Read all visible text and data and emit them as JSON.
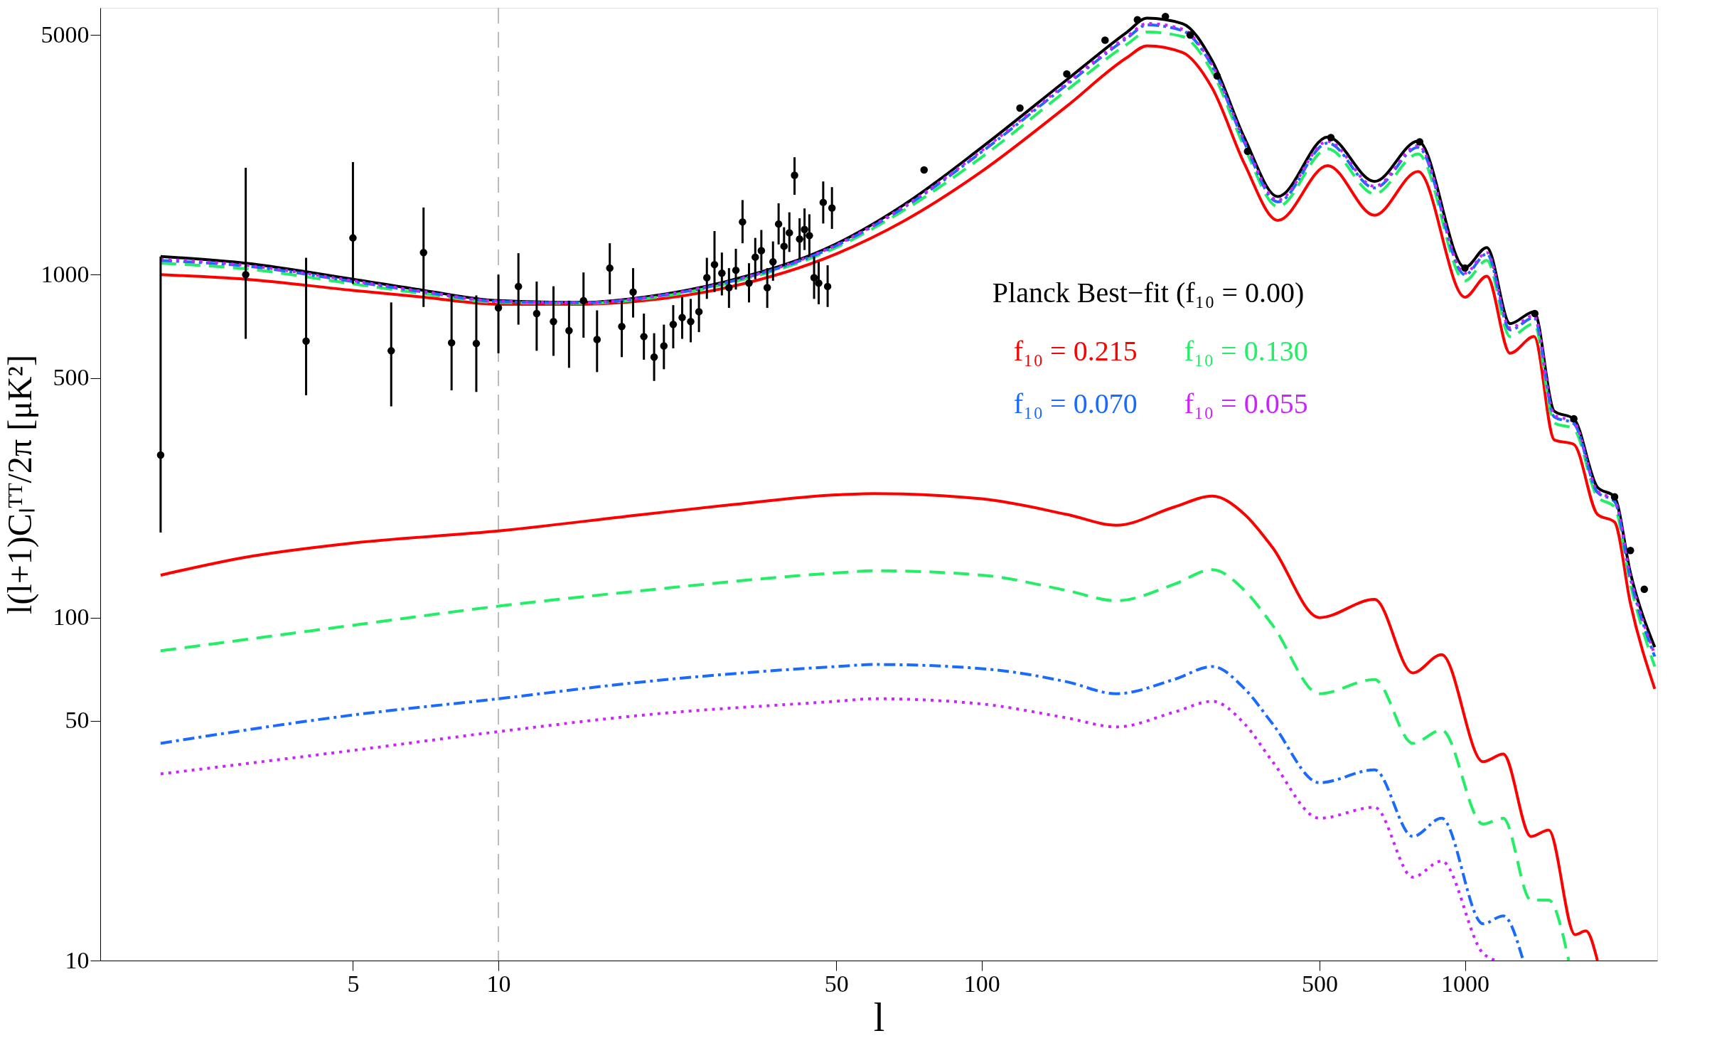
{
  "chart_data": {
    "type": "line",
    "xlabel": "l",
    "ylabel": "l(l+1)Cₗᵀᵀ/2π  [μK²]",
    "log": "xy",
    "grid": false,
    "legend": "right",
    "xlim": [
      1.5,
      2500
    ],
    "ylim": [
      10,
      6000
    ],
    "xticks": [
      5,
      10,
      50,
      100,
      500,
      1000
    ],
    "yticks": [
      10,
      50,
      100,
      500,
      1000,
      5000
    ],
    "ref_lines": [
      {
        "axis": "x",
        "value": 10,
        "color": "#bbbbbb",
        "line_style": "dashed"
      }
    ],
    "series": [
      {
        "name": "Planck Best−fit (f₁₀ = 0.00)",
        "color": "#000000",
        "line_style": "solid",
        "x": [
          2,
          3,
          5,
          7,
          10,
          15,
          20,
          30,
          50,
          70,
          100,
          150,
          200,
          220,
          260,
          300,
          350,
          410,
          520,
          650,
          800,
          1000,
          1110,
          1240,
          1390,
          1530,
          1680,
          1880,
          2040,
          2200,
          2470
        ],
        "values": [
          1130,
          1080,
          970,
          900,
          840,
          830,
          860,
          960,
          1230,
          1620,
          2350,
          3700,
          5100,
          5600,
          5400,
          4200,
          2500,
          1690,
          2520,
          1870,
          2450,
          1050,
          1200,
          720,
          780,
          400,
          380,
          240,
          225,
          135,
          82
        ]
      },
      {
        "name": "f₁₀ = 0.215",
        "color": "#ff0000",
        "line_style": "solid",
        "x": [
          2,
          3,
          5,
          7,
          10,
          15,
          20,
          30,
          50,
          70,
          100,
          150,
          200,
          220,
          260,
          300,
          350,
          410,
          520,
          650,
          800,
          1000,
          1110,
          1240,
          1390,
          1530,
          1680,
          1880,
          2040,
          2200,
          2470
        ],
        "values": [
          1000,
          970,
          900,
          860,
          820,
          820,
          840,
          920,
          1150,
          1450,
          2000,
          3100,
          4300,
          4650,
          4450,
          3500,
          2100,
          1440,
          2080,
          1490,
          2000,
          860,
          990,
          590,
          660,
          330,
          320,
          200,
          190,
          110,
          62
        ]
      },
      {
        "name": "f₁₀ = 0.130",
        "color": "#22ee66",
        "line_style": "dashed",
        "x": [
          2,
          3,
          5,
          7,
          10,
          15,
          20,
          30,
          50,
          70,
          100,
          150,
          200,
          220,
          260,
          300,
          350,
          410,
          520,
          650,
          800,
          1000,
          1110,
          1240,
          1390,
          1530,
          1680,
          1880,
          2040,
          2200,
          2470
        ],
        "values": [
          1080,
          1040,
          940,
          880,
          830,
          825,
          850,
          945,
          1200,
          1560,
          2200,
          3450,
          4700,
          5100,
          4950,
          3900,
          2350,
          1580,
          2330,
          1720,
          2250,
          960,
          1100,
          660,
          720,
          370,
          355,
          225,
          210,
          125,
          72
        ]
      },
      {
        "name": "f₁₀ = 0.070",
        "color": "#1a6aff",
        "line_style": "dashdot",
        "x": [
          2,
          3,
          5,
          7,
          10,
          15,
          20,
          30,
          50,
          70,
          100,
          150,
          200,
          220,
          260,
          300,
          350,
          410,
          520,
          650,
          800,
          1000,
          1110,
          1240,
          1390,
          1530,
          1680,
          1880,
          2040,
          2200,
          2470
        ],
        "values": [
          1100,
          1060,
          955,
          890,
          835,
          828,
          855,
          952,
          1215,
          1590,
          2280,
          3580,
          4900,
          5350,
          5150,
          4050,
          2420,
          1630,
          2420,
          1790,
          2350,
          1000,
          1150,
          690,
          750,
          385,
          368,
          232,
          218,
          130,
          77
        ]
      },
      {
        "name": "f₁₀ = 0.055",
        "color": "#cc22ff",
        "line_style": "dotted",
        "x": [
          2,
          3,
          5,
          7,
          10,
          15,
          20,
          30,
          50,
          70,
          100,
          150,
          200,
          220,
          260,
          300,
          350,
          410,
          520,
          650,
          800,
          1000,
          1110,
          1240,
          1390,
          1530,
          1680,
          1880,
          2040,
          2200,
          2470
        ],
        "values": [
          1110,
          1065,
          960,
          893,
          837,
          829,
          857,
          955,
          1220,
          1600,
          2300,
          3620,
          4950,
          5400,
          5200,
          4080,
          2450,
          1650,
          2450,
          1810,
          2380,
          1010,
          1160,
          700,
          760,
          390,
          372,
          234,
          220,
          132,
          78
        ]
      },
      {
        "color": "#ff0000",
        "line_style": "solid",
        "x": [
          2,
          3,
          5,
          10,
          20,
          30,
          50,
          60,
          100,
          150,
          190,
          250,
          300,
          350,
          400,
          500,
          650,
          780,
          895,
          1090,
          1200,
          1370,
          1490,
          1690,
          1780,
          1880
        ],
        "values": [
          133,
          150,
          165,
          179,
          200,
          213,
          228,
          230,
          222,
          200,
          186,
          210,
          226,
          200,
          160,
          100,
          113,
          69,
          78,
          38,
          40,
          23,
          24,
          11.9,
          12.2,
          10
        ]
      },
      {
        "color": "#22ee66",
        "line_style": "dashed",
        "x": [
          2,
          5,
          10,
          20,
          50,
          60,
          100,
          150,
          190,
          250,
          300,
          350,
          400,
          500,
          650,
          780,
          895,
          1090,
          1200,
          1370,
          1490,
          1640
        ],
        "values": [
          80,
          95,
          108,
          120,
          135,
          137,
          133,
          120,
          112,
          125,
          138,
          120,
          95,
          60,
          66,
          43,
          47,
          25,
          26,
          15,
          15,
          10
        ]
      },
      {
        "color": "#1a6aff",
        "line_style": "dashdot",
        "x": [
          2,
          5,
          10,
          20,
          50,
          60,
          100,
          150,
          190,
          250,
          300,
          350,
          400,
          500,
          650,
          780,
          895,
          1090,
          1200,
          1320
        ],
        "values": [
          43,
          52,
          58,
          65,
          72,
          73,
          71,
          65,
          60,
          66,
          72,
          62,
          49,
          33,
          36,
          23,
          26,
          12.8,
          13.5,
          10
        ]
      },
      {
        "color": "#cc22ff",
        "line_style": "dotted",
        "x": [
          2,
          5,
          10,
          20,
          50,
          60,
          100,
          150,
          190,
          250,
          300,
          350,
          400,
          500,
          650,
          780,
          895,
          1090,
          1160
        ],
        "values": [
          35,
          41,
          46.5,
          52,
          57,
          58,
          56,
          51,
          48,
          53,
          57,
          49,
          38,
          26,
          28,
          17.5,
          19.5,
          10.5,
          10
        ]
      },
      {
        "type": "scatter",
        "color": "#000000",
        "marker": "circle",
        "x": [
          2,
          3,
          4,
          5,
          6,
          7,
          8,
          9,
          10,
          11,
          12,
          13,
          14,
          15,
          16,
          17,
          18,
          19,
          20,
          21,
          22,
          23,
          24,
          25,
          26,
          27,
          28,
          29,
          30,
          31,
          32,
          33,
          34,
          35,
          36,
          37,
          38,
          39,
          40,
          41,
          42,
          43,
          44,
          45,
          46,
          47,
          48,
          49,
          76,
          120,
          150,
          180,
          210,
          240,
          270,
          307,
          355,
          528,
          806,
          1000,
          1395,
          1680,
          2040,
          2200,
          2350
        ],
        "values": [
          298,
          1000,
          640,
          1280,
          600,
          1160,
          633,
          630,
          800,
          924,
          770,
          730,
          687,
          840,
          647,
          1045,
          706,
          890,
          660,
          575,
          620,
          716,
          750,
          730,
          780,
          980,
          1070,
          1010,
          917,
          1030,
          1425,
          945,
          1125,
          1175,
          917,
          1090,
          1405,
          1210,
          1325,
          1950,
          1270,
          1355,
          1300,
          980,
          945,
          1625,
          924,
          1565,
          2020,
          3060,
          3850,
          4830,
          5540,
          5660,
          5000,
          3800,
          2290,
          2510,
          2440,
          1045,
          770,
          380,
          225,
          157,
          121
        ],
        "errors": [
          [
            177,
            1130
          ],
          [
            650,
            2050
          ],
          [
            445,
            1120
          ],
          [
            940,
            2130
          ],
          [
            413,
            830
          ],
          [
            805,
            1570
          ],
          [
            460,
            875
          ],
          [
            455,
            870
          ],
          [
            590,
            1000
          ],
          [
            715,
            1155
          ],
          [
            600,
            955
          ],
          [
            580,
            925
          ],
          [
            535,
            840
          ],
          [
            655,
            1015
          ],
          [
            520,
            787
          ],
          [
            877,
            1235
          ],
          [
            575,
            840
          ],
          [
            750,
            1045
          ],
          [
            565,
            770
          ],
          [
            490,
            675
          ],
          [
            530,
            715
          ],
          [
            610,
            815
          ],
          [
            650,
            860
          ],
          [
            635,
            850
          ],
          [
            680,
            905
          ],
          [
            850,
            1120
          ],
          [
            890,
            1340
          ],
          [
            870,
            1160
          ],
          [
            800,
            1045
          ],
          [
            905,
            1190
          ],
          [
            1235,
            1650
          ],
          [
            830,
            1080
          ],
          [
            970,
            1280
          ],
          [
            1030,
            1350
          ],
          [
            800,
            1045
          ],
          [
            960,
            1250
          ],
          [
            1225,
            1615
          ],
          [
            1060,
            1375
          ],
          [
            1165,
            1520
          ],
          [
            1710,
            2200
          ],
          [
            1110,
            1460
          ],
          [
            1180,
            1560
          ],
          [
            1130,
            1500
          ],
          [
            850,
            1130
          ],
          [
            820,
            1090
          ],
          [
            1410,
            1870
          ],
          [
            805,
            1065
          ],
          [
            1360,
            1800
          ],
          null,
          null,
          null,
          null,
          null,
          null,
          null,
          null,
          null,
          null,
          null,
          null,
          null,
          null,
          null,
          null,
          null
        ]
      }
    ]
  }
}
